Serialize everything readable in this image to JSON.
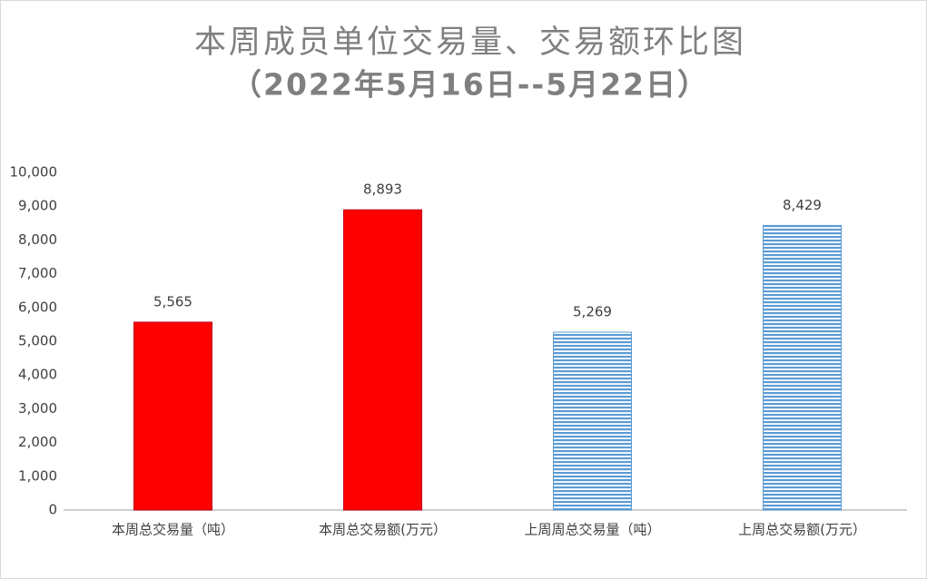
{
  "chart_data": {
    "type": "bar",
    "title": "本周成员单位交易量、交易额环比图",
    "subtitle": "（2022年5月16日--5月22日）",
    "categories": [
      "本周总交易量（吨）",
      "本周总交易额(万元）",
      "上周周总交易量（吨）",
      "上周总交易额(万元）"
    ],
    "values": [
      5565,
      8893,
      5269,
      8429
    ],
    "value_labels": [
      "5,565",
      "8,893",
      "5,269",
      "8,429"
    ],
    "colors": [
      "#ff0000",
      "#ff0000",
      "#5b9bd5",
      "#5b9bd5"
    ],
    "patterns": [
      "solid",
      "solid",
      "stripes",
      "stripes"
    ],
    "ylim": [
      0,
      10000
    ],
    "yticks": [
      0,
      {
        "value": 1000,
        "label": "1,000"
      },
      {
        "value": 2000,
        "label": "2,000"
      },
      {
        "value": 3000,
        "label": "3,000"
      },
      {
        "value": 4000,
        "label": "4,000"
      },
      {
        "value": 5000,
        "label": "5,000"
      },
      {
        "value": 6000,
        "label": "6,000"
      },
      {
        "value": 7000,
        "label": "7,000"
      },
      {
        "value": 8000,
        "label": "8,000"
      },
      {
        "value": 9000,
        "label": "9,000"
      },
      {
        "value": 10000,
        "label": "10,000"
      }
    ],
    "grid": false
  }
}
